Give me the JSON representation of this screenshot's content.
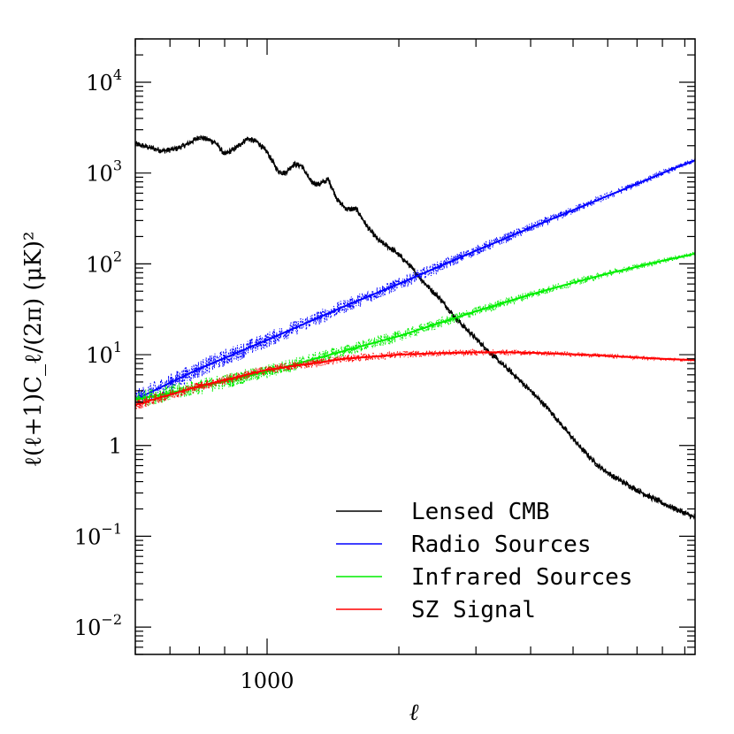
{
  "chart_data": {
    "type": "line",
    "title": "",
    "xlabel": "ℓ",
    "ylabel": "ℓ(ℓ+1)C_ℓ/(2π) (μK)²",
    "x_scale": "log",
    "y_scale": "log",
    "xlim": [
      500,
      9500
    ],
    "ylim": [
      0.005,
      30000
    ],
    "x_tick_labels": [
      {
        "value": 1000,
        "label": "1000"
      }
    ],
    "y_tick_labels": [
      {
        "value": 10000,
        "base": "10",
        "exp": "4"
      },
      {
        "value": 1000,
        "base": "10",
        "exp": "3"
      },
      {
        "value": 100,
        "base": "10",
        "exp": "2"
      },
      {
        "value": 10,
        "base": "10",
        "exp": "1"
      },
      {
        "value": 1,
        "base": "1",
        "exp": ""
      },
      {
        "value": 0.1,
        "base": "10",
        "exp": "−1"
      },
      {
        "value": 0.01,
        "base": "10",
        "exp": "−2"
      }
    ],
    "grid": false,
    "legend_position": "bottom-right",
    "series": [
      {
        "name": "Lensed CMB",
        "color": "#000000",
        "x": [
          500,
          540,
          580,
          620,
          660,
          700,
          760,
          800,
          850,
          900,
          950,
          1000,
          1060,
          1100,
          1150,
          1200,
          1260,
          1310,
          1380,
          1450,
          1520,
          1600,
          1700,
          1800,
          1950,
          2100,
          2300,
          2500,
          2700,
          3000,
          3300,
          3600,
          4000,
          4400,
          4800,
          5200,
          5700,
          6200,
          6800,
          7500,
          8200,
          9000,
          9500
        ],
        "y": [
          2100,
          1900,
          1750,
          1850,
          2100,
          2500,
          2200,
          1600,
          1900,
          2400,
          2200,
          1700,
          1050,
          1000,
          1250,
          1200,
          800,
          750,
          850,
          500,
          400,
          400,
          250,
          180,
          140,
          100,
          60,
          40,
          25,
          15,
          9.5,
          6.5,
          4.0,
          2.5,
          1.5,
          0.95,
          0.6,
          0.45,
          0.35,
          0.27,
          0.22,
          0.18,
          0.16
        ]
      },
      {
        "name": "Radio Sources",
        "color": "#0000ff",
        "x": [
          500,
          700,
          1000,
          1500,
          2000,
          3000,
          4000,
          5000,
          6000,
          7000,
          8000,
          9000,
          9500
        ],
        "y": [
          3.2,
          7.0,
          14.5,
          34,
          60,
          140,
          250,
          390,
          560,
          760,
          1000,
          1250,
          1380
        ]
      },
      {
        "name": "Infrared Sources",
        "color": "#00ee00",
        "x": [
          500,
          700,
          1000,
          1500,
          2000,
          3000,
          4000,
          5000,
          6000,
          7000,
          8000,
          9000,
          9500
        ],
        "y": [
          3.2,
          4.4,
          6.5,
          11,
          16,
          30,
          46,
          62,
          78,
          93,
          108,
          122,
          130
        ]
      },
      {
        "name": "SZ Signal",
        "color": "#ff0000",
        "x": [
          500,
          700,
          1000,
          1500,
          2000,
          2500,
          3000,
          3500,
          4000,
          5000,
          6000,
          7000,
          8000,
          9000,
          9500
        ],
        "y": [
          2.8,
          4.5,
          6.8,
          9.0,
          10.0,
          10.4,
          10.6,
          10.6,
          10.5,
          10.1,
          9.7,
          9.3,
          9.0,
          8.8,
          8.7
        ]
      }
    ]
  }
}
